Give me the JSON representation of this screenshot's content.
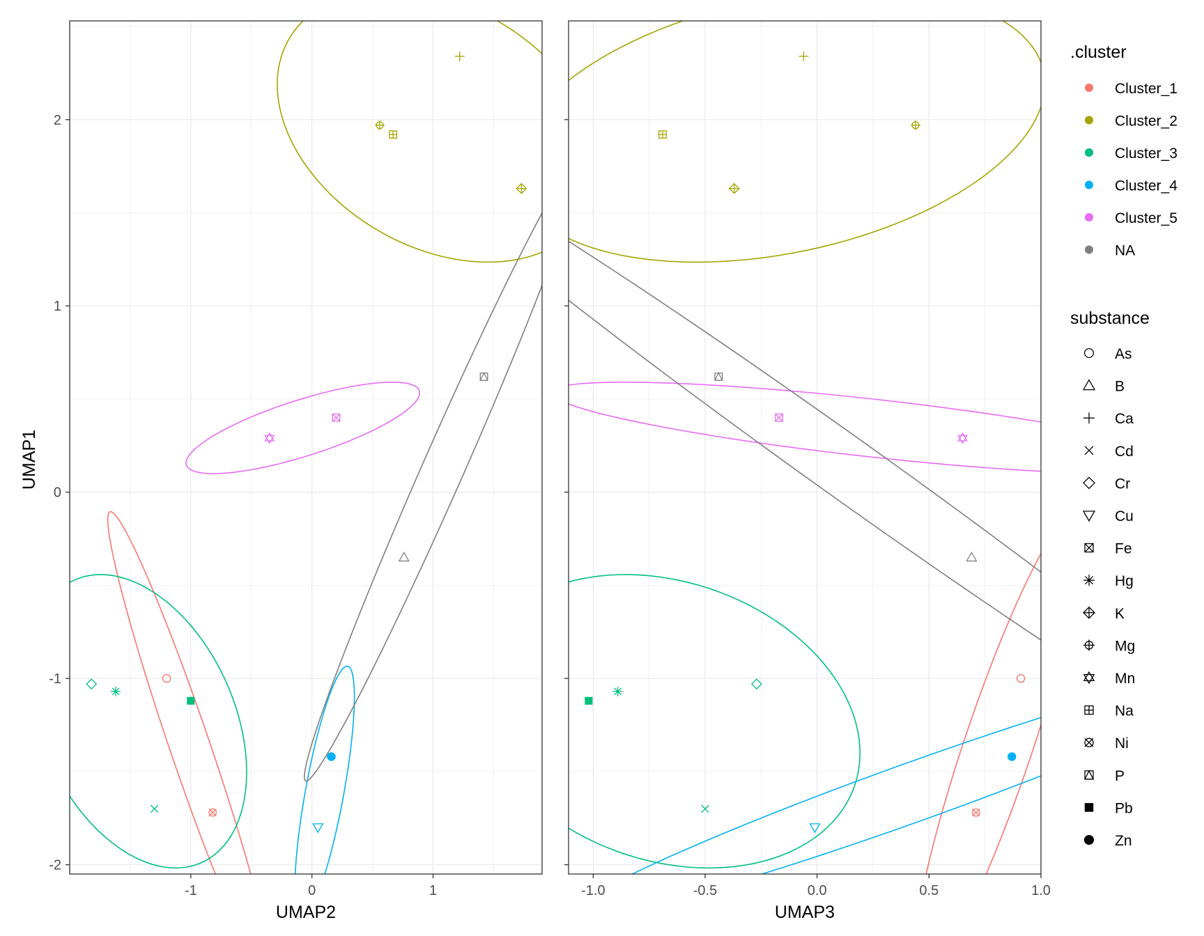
{
  "chart_data": {
    "type": "scatter",
    "y_axis": {
      "label": "UMAP1",
      "range": [
        -2.05,
        2.53
      ],
      "ticks": [
        -2,
        -1,
        0,
        1,
        2
      ],
      "tick_labels": [
        "-2",
        "-1",
        "0",
        "1",
        "2"
      ]
    },
    "panels": [
      {
        "name": "left",
        "x_axis": {
          "label": "UMAP2",
          "range": [
            -2.0,
            1.9
          ],
          "ticks": [
            -1,
            0,
            1
          ],
          "tick_labels": [
            "-1",
            "0",
            "1"
          ]
        },
        "points": [
          {
            "substance": "As",
            "cluster": "Cluster_1",
            "x": -1.2,
            "y": -1.0
          },
          {
            "substance": "Ni",
            "cluster": "Cluster_1",
            "x": -0.82,
            "y": -1.72
          },
          {
            "substance": "Ca",
            "cluster": "Cluster_2",
            "x": 1.22,
            "y": 2.34
          },
          {
            "substance": "Mg",
            "cluster": "Cluster_2",
            "x": 0.56,
            "y": 1.97
          },
          {
            "substance": "Na",
            "cluster": "Cluster_2",
            "x": 0.67,
            "y": 1.92
          },
          {
            "substance": "K",
            "cluster": "Cluster_2",
            "x": 1.73,
            "y": 1.63
          },
          {
            "substance": "Cr",
            "cluster": "Cluster_3",
            "x": -1.82,
            "y": -1.03
          },
          {
            "substance": "Hg",
            "cluster": "Cluster_3",
            "x": -1.62,
            "y": -1.07
          },
          {
            "substance": "Pb",
            "cluster": "Cluster_3",
            "x": -1.0,
            "y": -1.12
          },
          {
            "substance": "Cd",
            "cluster": "Cluster_3",
            "x": -1.3,
            "y": -1.7
          },
          {
            "substance": "Zn",
            "cluster": "Cluster_4",
            "x": 0.16,
            "y": -1.42
          },
          {
            "substance": "Cu",
            "cluster": "Cluster_4",
            "x": 0.05,
            "y": -1.8
          },
          {
            "substance": "Mn",
            "cluster": "Cluster_5",
            "x": -0.35,
            "y": 0.29
          },
          {
            "substance": "Fe",
            "cluster": "Cluster_5",
            "x": 0.2,
            "y": 0.4
          },
          {
            "substance": "P",
            "cluster": "NA",
            "x": 1.42,
            "y": 0.62
          },
          {
            "substance": "B",
            "cluster": "NA",
            "x": 0.76,
            "y": -0.35
          }
        ]
      },
      {
        "name": "right",
        "x_axis": {
          "label": "UMAP3",
          "range": [
            -1.11,
            1.0
          ],
          "ticks": [
            -1.0,
            -0.5,
            0.0,
            0.5,
            1.0
          ],
          "tick_labels": [
            "-1.0",
            "-0.5",
            "0.0",
            "0.5",
            "1.0"
          ]
        },
        "points": [
          {
            "substance": "As",
            "cluster": "Cluster_1",
            "x": 0.91,
            "y": -1.0
          },
          {
            "substance": "Ni",
            "cluster": "Cluster_1",
            "x": 0.71,
            "y": -1.72
          },
          {
            "substance": "Ca",
            "cluster": "Cluster_2",
            "x": -0.06,
            "y": 2.34
          },
          {
            "substance": "Mg",
            "cluster": "Cluster_2",
            "x": 0.44,
            "y": 1.97
          },
          {
            "substance": "Na",
            "cluster": "Cluster_2",
            "x": -0.69,
            "y": 1.92
          },
          {
            "substance": "K",
            "cluster": "Cluster_2",
            "x": -0.37,
            "y": 1.63
          },
          {
            "substance": "Cr",
            "cluster": "Cluster_3",
            "x": -0.27,
            "y": -1.03
          },
          {
            "substance": "Hg",
            "cluster": "Cluster_3",
            "x": -0.89,
            "y": -1.07
          },
          {
            "substance": "Pb",
            "cluster": "Cluster_3",
            "x": -1.02,
            "y": -1.12
          },
          {
            "substance": "Cd",
            "cluster": "Cluster_3",
            "x": -0.5,
            "y": -1.7
          },
          {
            "substance": "Zn",
            "cluster": "Cluster_4",
            "x": 0.87,
            "y": -1.42
          },
          {
            "substance": "Cu",
            "cluster": "Cluster_4",
            "x": -0.01,
            "y": -1.8
          },
          {
            "substance": "Mn",
            "cluster": "Cluster_5",
            "x": 0.65,
            "y": 0.29
          },
          {
            "substance": "Fe",
            "cluster": "Cluster_5",
            "x": -0.17,
            "y": 0.4
          },
          {
            "substance": "P",
            "cluster": "NA",
            "x": -0.44,
            "y": 0.62
          },
          {
            "substance": "B",
            "cluster": "NA",
            "x": 0.69,
            "y": -0.35
          }
        ]
      }
    ],
    "legend": {
      "cluster_title": ".cluster",
      "clusters": [
        {
          "name": "Cluster_1",
          "color": "#F8766D"
        },
        {
          "name": "Cluster_2",
          "color": "#A3A500"
        },
        {
          "name": "Cluster_3",
          "color": "#00BF7D"
        },
        {
          "name": "Cluster_4",
          "color": "#00B0F6"
        },
        {
          "name": "Cluster_5",
          "color": "#E76BF3"
        },
        {
          "name": "NA",
          "color": "#7F7F7F"
        }
      ],
      "substance_title": "substance",
      "substances": [
        {
          "name": "As",
          "shape": "circle-open"
        },
        {
          "name": "B",
          "shape": "triangle-up-open"
        },
        {
          "name": "Ca",
          "shape": "plus"
        },
        {
          "name": "Cd",
          "shape": "cross"
        },
        {
          "name": "Cr",
          "shape": "diamond-open"
        },
        {
          "name": "Cu",
          "shape": "triangle-down-open"
        },
        {
          "name": "Fe",
          "shape": "square-cross"
        },
        {
          "name": "Hg",
          "shape": "asterisk"
        },
        {
          "name": "K",
          "shape": "diamond-plus"
        },
        {
          "name": "Mg",
          "shape": "circle-plus"
        },
        {
          "name": "Mn",
          "shape": "star-of-david"
        },
        {
          "name": "Na",
          "shape": "square-plus"
        },
        {
          "name": "Ni",
          "shape": "circle-cross"
        },
        {
          "name": "P",
          "shape": "square-triangle"
        },
        {
          "name": "Pb",
          "shape": "square-filled"
        },
        {
          "name": "Zn",
          "shape": "circle-filled"
        }
      ]
    }
  }
}
